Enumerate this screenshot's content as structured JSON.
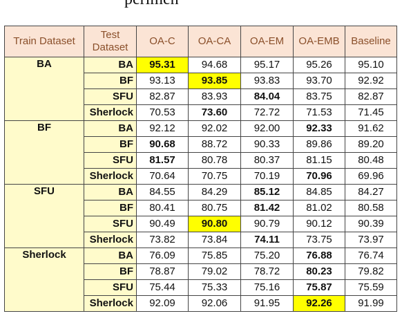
{
  "caption_fragment": "perimen",
  "headers": [
    "Train Dataset",
    "Test Dataset",
    "OA-C",
    "OA-CA",
    "OA-EM",
    "OA-EMB",
    "Baseline"
  ],
  "groups": [
    {
      "train": "BA",
      "rows": [
        {
          "test": "BA",
          "values": [
            "95.31",
            "94.68",
            "95.17",
            "95.26",
            "95.10"
          ],
          "bold": [
            0
          ],
          "highlight": [
            0
          ]
        },
        {
          "test": "BF",
          "values": [
            "93.13",
            "93.85",
            "93.83",
            "93.70",
            "92.92"
          ],
          "bold": [
            1
          ],
          "highlight": [
            1
          ]
        },
        {
          "test": "SFU",
          "values": [
            "82.87",
            "83.93",
            "84.04",
            "83.75",
            "82.87"
          ],
          "bold": [
            2
          ],
          "highlight": []
        },
        {
          "test": "Sherlock",
          "values": [
            "70.53",
            "73.60",
            "72.72",
            "71.53",
            "71.45"
          ],
          "bold": [
            1
          ],
          "highlight": []
        }
      ]
    },
    {
      "train": "BF",
      "rows": [
        {
          "test": "BA",
          "values": [
            "92.12",
            "92.02",
            "92.00",
            "92.33",
            "91.62"
          ],
          "bold": [
            3
          ],
          "highlight": []
        },
        {
          "test": "BF",
          "values": [
            "90.68",
            "88.72",
            "90.33",
            "89.86",
            "89.20"
          ],
          "bold": [
            0
          ],
          "highlight": []
        },
        {
          "test": "SFU",
          "values": [
            "81.57",
            "80.78",
            "80.37",
            "81.15",
            "80.48"
          ],
          "bold": [
            0
          ],
          "highlight": []
        },
        {
          "test": "Sherlock",
          "values": [
            "70.64",
            "70.75",
            "70.19",
            "70.96",
            "69.96"
          ],
          "bold": [
            3
          ],
          "highlight": []
        }
      ]
    },
    {
      "train": "SFU",
      "rows": [
        {
          "test": "BA",
          "values": [
            "84.55",
            "84.29",
            "85.12",
            "84.85",
            "84.27"
          ],
          "bold": [
            2
          ],
          "highlight": []
        },
        {
          "test": "BF",
          "values": [
            "80.41",
            "80.75",
            "81.42",
            "81.02",
            "80.58"
          ],
          "bold": [
            2
          ],
          "highlight": []
        },
        {
          "test": "SFU",
          "values": [
            "90.49",
            "90.80",
            "90.79",
            "90.12",
            "90.39"
          ],
          "bold": [
            1
          ],
          "highlight": [
            1
          ]
        },
        {
          "test": "Sherlock",
          "values": [
            "73.82",
            "73.84",
            "74.11",
            "73.75",
            "73.97"
          ],
          "bold": [
            2
          ],
          "highlight": []
        }
      ]
    },
    {
      "train": "Sherlock",
      "rows": [
        {
          "test": "BA",
          "values": [
            "76.09",
            "75.85",
            "75.20",
            "76.88",
            "76.74"
          ],
          "bold": [
            3
          ],
          "highlight": []
        },
        {
          "test": "BF",
          "values": [
            "78.87",
            "79.02",
            "78.72",
            "80.23",
            "79.82"
          ],
          "bold": [
            3
          ],
          "highlight": []
        },
        {
          "test": "SFU",
          "values": [
            "75.44",
            "75.33",
            "75.16",
            "75.87",
            "75.59"
          ],
          "bold": [
            3
          ],
          "highlight": []
        },
        {
          "test": "Sherlock",
          "values": [
            "92.09",
            "92.06",
            "91.95",
            "92.26",
            "91.99"
          ],
          "bold": [
            3
          ],
          "highlight": [
            3
          ]
        }
      ]
    }
  ],
  "colors": {
    "header_bg": "#fbe4d5",
    "header_text": "#8a4f2a",
    "label_bg": "#fffbcb",
    "highlight": "#ffff00"
  }
}
